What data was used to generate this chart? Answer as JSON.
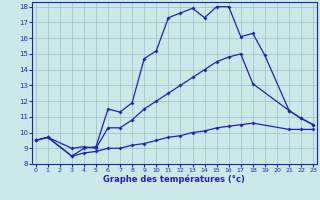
{
  "xlabel": "Graphe des températures (°c)",
  "x_hours": [
    0,
    1,
    2,
    3,
    4,
    5,
    6,
    7,
    8,
    9,
    10,
    11,
    12,
    13,
    14,
    15,
    16,
    17,
    18,
    19,
    20,
    21,
    22,
    23
  ],
  "line_max": [
    9.5,
    9.7,
    8.5,
    9.0,
    9.1,
    11.5,
    11.3,
    11.9,
    14.7,
    15.2,
    17.3,
    17.6,
    17.9,
    17.3,
    18.0,
    18.0,
    16.1,
    16.3,
    14.9,
    11.4,
    10.9,
    10.5
  ],
  "line_max_x": [
    0,
    1,
    3,
    4,
    5,
    6,
    7,
    8,
    9,
    10,
    11,
    12,
    13,
    14,
    15,
    16,
    17,
    18,
    19,
    21,
    22,
    23
  ],
  "line_avg": [
    9.5,
    9.7,
    9.0,
    9.1,
    9.0,
    10.3,
    10.3,
    10.8,
    11.5,
    12.0,
    12.5,
    13.0,
    13.5,
    14.0,
    14.5,
    14.8,
    15.0,
    13.1,
    11.4,
    10.9,
    10.5
  ],
  "line_avg_x": [
    0,
    1,
    3,
    4,
    5,
    6,
    7,
    8,
    9,
    10,
    11,
    12,
    13,
    14,
    15,
    16,
    17,
    18,
    21,
    22,
    23
  ],
  "line_min": [
    9.5,
    9.7,
    8.5,
    8.7,
    8.8,
    9.0,
    9.0,
    9.2,
    9.3,
    9.5,
    9.7,
    9.8,
    10.0,
    10.1,
    10.3,
    10.4,
    10.5,
    10.6,
    10.2,
    10.2,
    10.2
  ],
  "line_min_x": [
    0,
    1,
    3,
    4,
    5,
    6,
    7,
    8,
    9,
    10,
    11,
    12,
    13,
    14,
    15,
    16,
    17,
    18,
    21,
    22,
    23
  ],
  "bg_color": "#cce8e8",
  "line_color": "#2222bb",
  "grid_color": "#99cccc",
  "ylim": [
    8,
    18.3
  ],
  "yticks": [
    8,
    9,
    10,
    11,
    12,
    13,
    14,
    15,
    16,
    17,
    18
  ],
  "xticks": [
    0,
    1,
    2,
    3,
    4,
    5,
    6,
    7,
    8,
    9,
    10,
    11,
    12,
    13,
    14,
    15,
    16,
    17,
    18,
    19,
    20,
    21,
    22,
    23
  ]
}
